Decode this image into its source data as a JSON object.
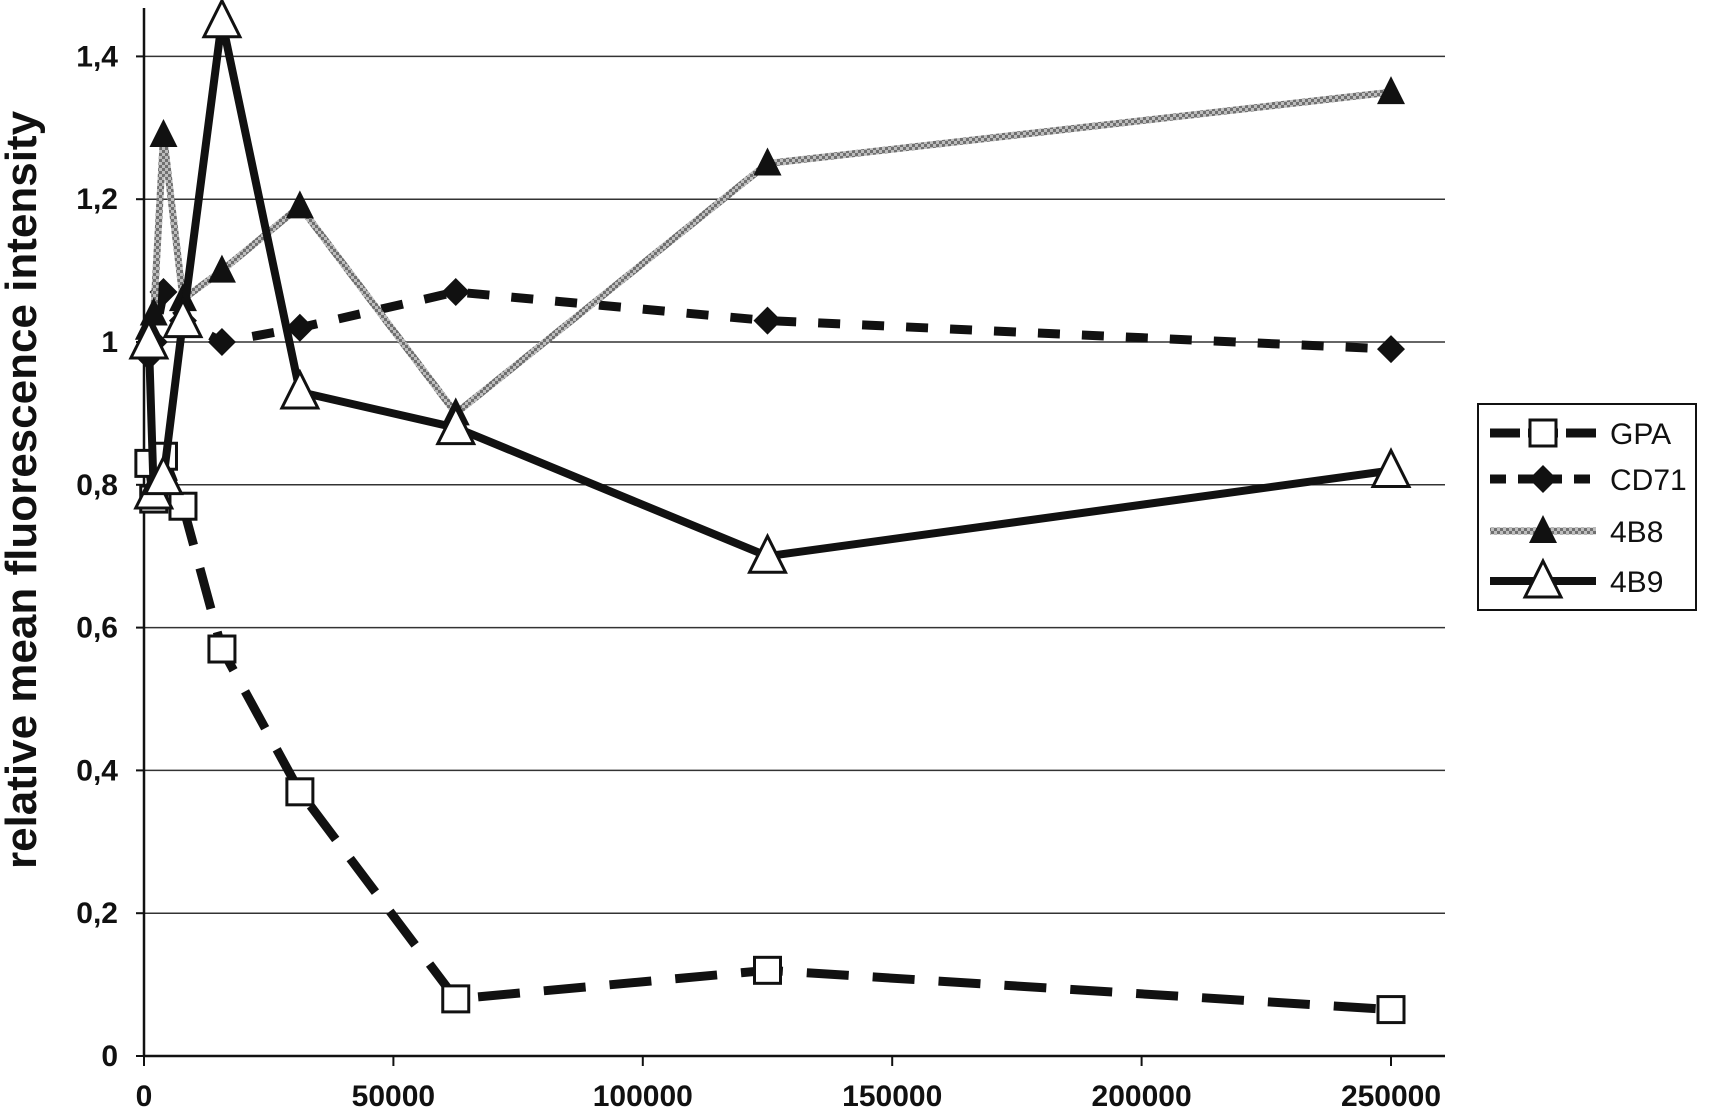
{
  "chart_data": {
    "type": "line",
    "title": "",
    "xlabel": "",
    "ylabel": "relative mean fluorescence intensity",
    "xlim": [
      0,
      260000
    ],
    "ylim": [
      0,
      1.45
    ],
    "x_ticks": [
      0,
      50000,
      100000,
      150000,
      200000,
      250000
    ],
    "x_tick_labels": [
      "0",
      "50000",
      "100000",
      "150000",
      "200000",
      "250000"
    ],
    "y_ticks": [
      0,
      0.2,
      0.4,
      0.6,
      0.8,
      1,
      1.2,
      1.4
    ],
    "y_tick_labels": [
      "0",
      "0,2",
      "0,4",
      "0,6",
      "0,8",
      "1",
      "1,2",
      "1,4"
    ],
    "grid": "horizontal",
    "legend_position": "right",
    "series": [
      {
        "name": "GPA",
        "color": "#111111",
        "marker": "open-square",
        "line_style": "long-dash",
        "x": [
          977,
          1953,
          3906,
          7813,
          15625,
          31250,
          62500,
          125000,
          250000
        ],
        "y": [
          0.83,
          0.78,
          0.84,
          0.77,
          0.57,
          0.37,
          0.08,
          0.12,
          0.065
        ]
      },
      {
        "name": "CD71",
        "color": "#111111",
        "marker": "filled-diamond",
        "line_style": "dash",
        "x": [
          977,
          1953,
          3906,
          7813,
          15625,
          31250,
          62500,
          125000,
          250000
        ],
        "y": [
          0.98,
          1.0,
          1.07,
          1.03,
          1.0,
          1.02,
          1.07,
          1.03,
          0.99
        ]
      },
      {
        "name": "4B8",
        "color": "#8a8a8a",
        "marker": "filled-triangle",
        "line_style": "textured",
        "x": [
          977,
          1953,
          3906,
          7813,
          15625,
          31250,
          62500,
          125000,
          250000
        ],
        "y": [
          1.02,
          1.04,
          1.29,
          1.06,
          1.1,
          1.19,
          0.9,
          1.25,
          1.35
        ]
      },
      {
        "name": "4B9",
        "color": "#111111",
        "marker": "open-triangle",
        "line_style": "solid-thick",
        "x": [
          977,
          1953,
          3906,
          7813,
          15625,
          31250,
          62500,
          125000,
          250000
        ],
        "y": [
          1.0,
          0.79,
          0.81,
          1.03,
          1.45,
          0.93,
          0.88,
          0.7,
          0.82
        ]
      }
    ]
  }
}
